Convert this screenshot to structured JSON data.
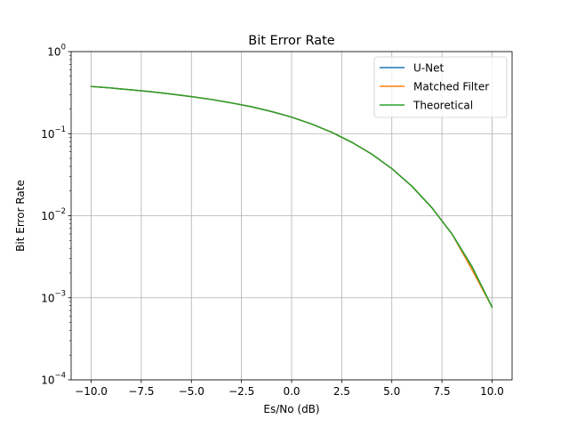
{
  "chart_data": {
    "type": "line",
    "title": "Bit Error Rate",
    "xlabel": "Es/No (dB)",
    "ylabel": "Bit Error Rate",
    "xlim": [
      -11.0,
      11.0
    ],
    "ylim": [
      0.0001,
      1
    ],
    "yscale": "log",
    "grid": true,
    "legend_position": "top-right",
    "x_ticks": [
      -10.0,
      -7.5,
      -5.0,
      -2.5,
      0.0,
      2.5,
      5.0,
      7.5,
      10.0
    ],
    "x_tick_labels": [
      "−10.0",
      "−7.5",
      "−5.0",
      "−2.5",
      "0.0",
      "2.5",
      "5.0",
      "7.5",
      "10.0"
    ],
    "y_ticks": [
      0.0001,
      0.001,
      0.01,
      0.1,
      1
    ],
    "y_tick_labels": [
      {
        "base": "10",
        "exp": "−4"
      },
      {
        "base": "10",
        "exp": "−3"
      },
      {
        "base": "10",
        "exp": "−2"
      },
      {
        "base": "10",
        "exp": "−1"
      },
      {
        "base": "10",
        "exp": "0"
      }
    ],
    "x": [
      -10,
      -9,
      -8,
      -7,
      -6,
      -5,
      -4,
      -3,
      -2,
      -1,
      0,
      1,
      2,
      3,
      4,
      5,
      6,
      7,
      8,
      9,
      10
    ],
    "series": [
      {
        "name": "U-Net",
        "color": "#1f77b4",
        "values": [
          0.376,
          0.36,
          0.342,
          0.324,
          0.304,
          0.283,
          0.261,
          0.237,
          0.213,
          0.186,
          0.159,
          0.131,
          0.104,
          0.0786,
          0.0563,
          0.0375,
          0.0229,
          0.0125,
          0.006,
          0.0024,
          0.00077
        ]
      },
      {
        "name": "Matched Filter",
        "color": "#ff7f0e",
        "values": [
          0.376,
          0.36,
          0.342,
          0.324,
          0.304,
          0.283,
          0.261,
          0.237,
          0.213,
          0.186,
          0.159,
          0.131,
          0.104,
          0.0786,
          0.0563,
          0.0375,
          0.0229,
          0.0125,
          0.006,
          0.0022,
          0.00077
        ]
      },
      {
        "name": "Theoretical",
        "color": "#2ca02c",
        "values": [
          0.376,
          0.36,
          0.342,
          0.324,
          0.304,
          0.283,
          0.261,
          0.237,
          0.213,
          0.186,
          0.159,
          0.131,
          0.104,
          0.0786,
          0.0563,
          0.0375,
          0.0229,
          0.0125,
          0.006,
          0.0024,
          0.00077
        ]
      }
    ]
  }
}
